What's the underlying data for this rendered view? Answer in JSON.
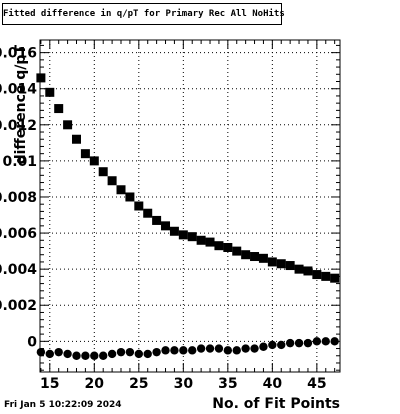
{
  "title": "Fitted difference in q/pT for Primary Rec All NoHits",
  "timestamp": "Fri Jan  5 10:22:09 2024",
  "chart_data": {
    "type": "scatter",
    "title": "Fitted difference in q/pT for Primary Rec All NoHits",
    "xlabel": "No. of Fit Points",
    "ylabel": "difference q/pT",
    "xlim": [
      13.9,
      47.6
    ],
    "ylim": [
      -0.0017,
      0.0167
    ],
    "grid": true,
    "xticks": [
      15,
      20,
      25,
      30,
      35,
      40,
      45
    ],
    "xtick_labels": [
      "15",
      "20",
      "25",
      "30",
      "35",
      "40",
      "45"
    ],
    "yticks": [
      0,
      0.002,
      0.004,
      0.006,
      0.008,
      0.01,
      0.012,
      0.014,
      0.016
    ],
    "ytick_labels": [
      "0",
      "0.002",
      "0.004",
      "0.006",
      "0.008",
      "0.01",
      "0.012",
      "0.014",
      "0.016"
    ],
    "series": [
      {
        "marker": "square",
        "x": [
          14,
          15,
          16,
          17,
          18,
          19,
          20,
          21,
          22,
          23,
          24,
          25,
          26,
          27,
          28,
          29,
          30,
          31,
          32,
          33,
          34,
          35,
          36,
          37,
          38,
          39,
          40,
          41,
          42,
          43,
          44,
          45,
          46,
          47
        ],
        "y": [
          0.0146,
          0.0138,
          0.0129,
          0.012,
          0.0112,
          0.0104,
          0.01,
          0.0094,
          0.0089,
          0.0084,
          0.008,
          0.0075,
          0.0071,
          0.0067,
          0.0064,
          0.0061,
          0.0059,
          0.0058,
          0.0056,
          0.0055,
          0.0053,
          0.0052,
          0.005,
          0.0048,
          0.0047,
          0.0046,
          0.0044,
          0.0043,
          0.0042,
          0.004,
          0.0039,
          0.0037,
          0.0036,
          0.0035
        ]
      },
      {
        "marker": "circle",
        "x": [
          14,
          15,
          16,
          17,
          18,
          19,
          20,
          21,
          22,
          23,
          24,
          25,
          26,
          27,
          28,
          29,
          30,
          31,
          32,
          33,
          34,
          35,
          36,
          37,
          38,
          39,
          40,
          41,
          42,
          43,
          44,
          45,
          46,
          47
        ],
        "y": [
          -0.0006,
          -0.0007,
          -0.0006,
          -0.0007,
          -0.0008,
          -0.0008,
          -0.0008,
          -0.0008,
          -0.0007,
          -0.0006,
          -0.0006,
          -0.0007,
          -0.0007,
          -0.0006,
          -0.0005,
          -0.0005,
          -0.0005,
          -0.0005,
          -0.0004,
          -0.0004,
          -0.0004,
          -0.0005,
          -0.0005,
          -0.0004,
          -0.0004,
          -0.0003,
          -0.0002,
          -0.0002,
          -0.0001,
          -0.0001,
          -0.0001,
          0.0,
          0.0,
          0.0
        ]
      }
    ]
  }
}
